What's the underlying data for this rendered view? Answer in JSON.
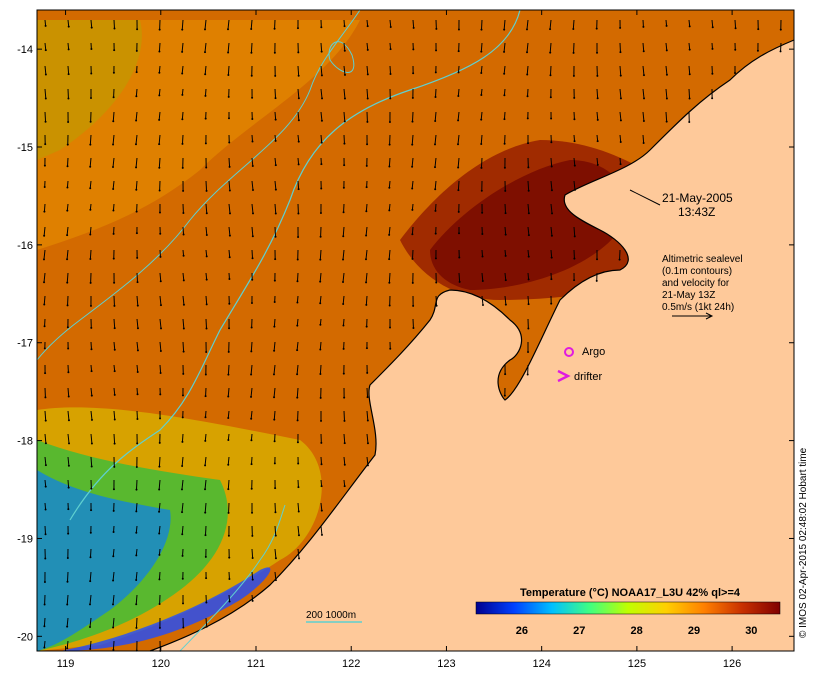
{
  "map": {
    "xaxis_ticks": [
      "119",
      "120",
      "121",
      "122",
      "123",
      "124",
      "125",
      "126"
    ],
    "yaxis_ticks": [
      "-14",
      "-15",
      "-16",
      "-17",
      "-18",
      "-19",
      "-20"
    ],
    "lon_range": [
      118.7,
      126.65
    ],
    "lat_range": [
      -20.15,
      -13.6
    ]
  },
  "timestamp": {
    "date": "21-May-2005",
    "time": "13:43Z"
  },
  "altimetry_note": {
    "line1": "Altimetric sealevel",
    "line2": "(0.1m contours)",
    "line3": "and velocity for",
    "line4": "21-May 13Z",
    "line5": "0.5m/s (1kt 24h)"
  },
  "legend": {
    "argo_label": "Argo",
    "drifter_label": "drifter",
    "argo_color": "#e01be0",
    "drifter_color": "#e01be0",
    "bathymetry_label": "200  1000m",
    "bathymetry_color": "#6fd6d6"
  },
  "colorbar": {
    "title": "Temperature (°C) NOAA17_L3U 42% ql>=4",
    "ticks": [
      "26",
      "27",
      "28",
      "29",
      "30"
    ],
    "range": [
      25.2,
      30.5
    ],
    "colors": [
      "#00008f",
      "#0040ff",
      "#00c0ff",
      "#40ff80",
      "#c0ff00",
      "#ffd000",
      "#ff8000",
      "#c83000",
      "#800000"
    ]
  },
  "credit": "© IMOS 02-Apr-2015 02:48:02 Hobart time",
  "colors": {
    "land": "#fec99a",
    "ocean_warm": "#d66a00",
    "ocean_hot": "#8a1000",
    "ocean_mid": "#f5a000",
    "ocean_cool": "#c8e000",
    "ocean_cold": "#1060ff",
    "contour": "#5fd0d0"
  }
}
